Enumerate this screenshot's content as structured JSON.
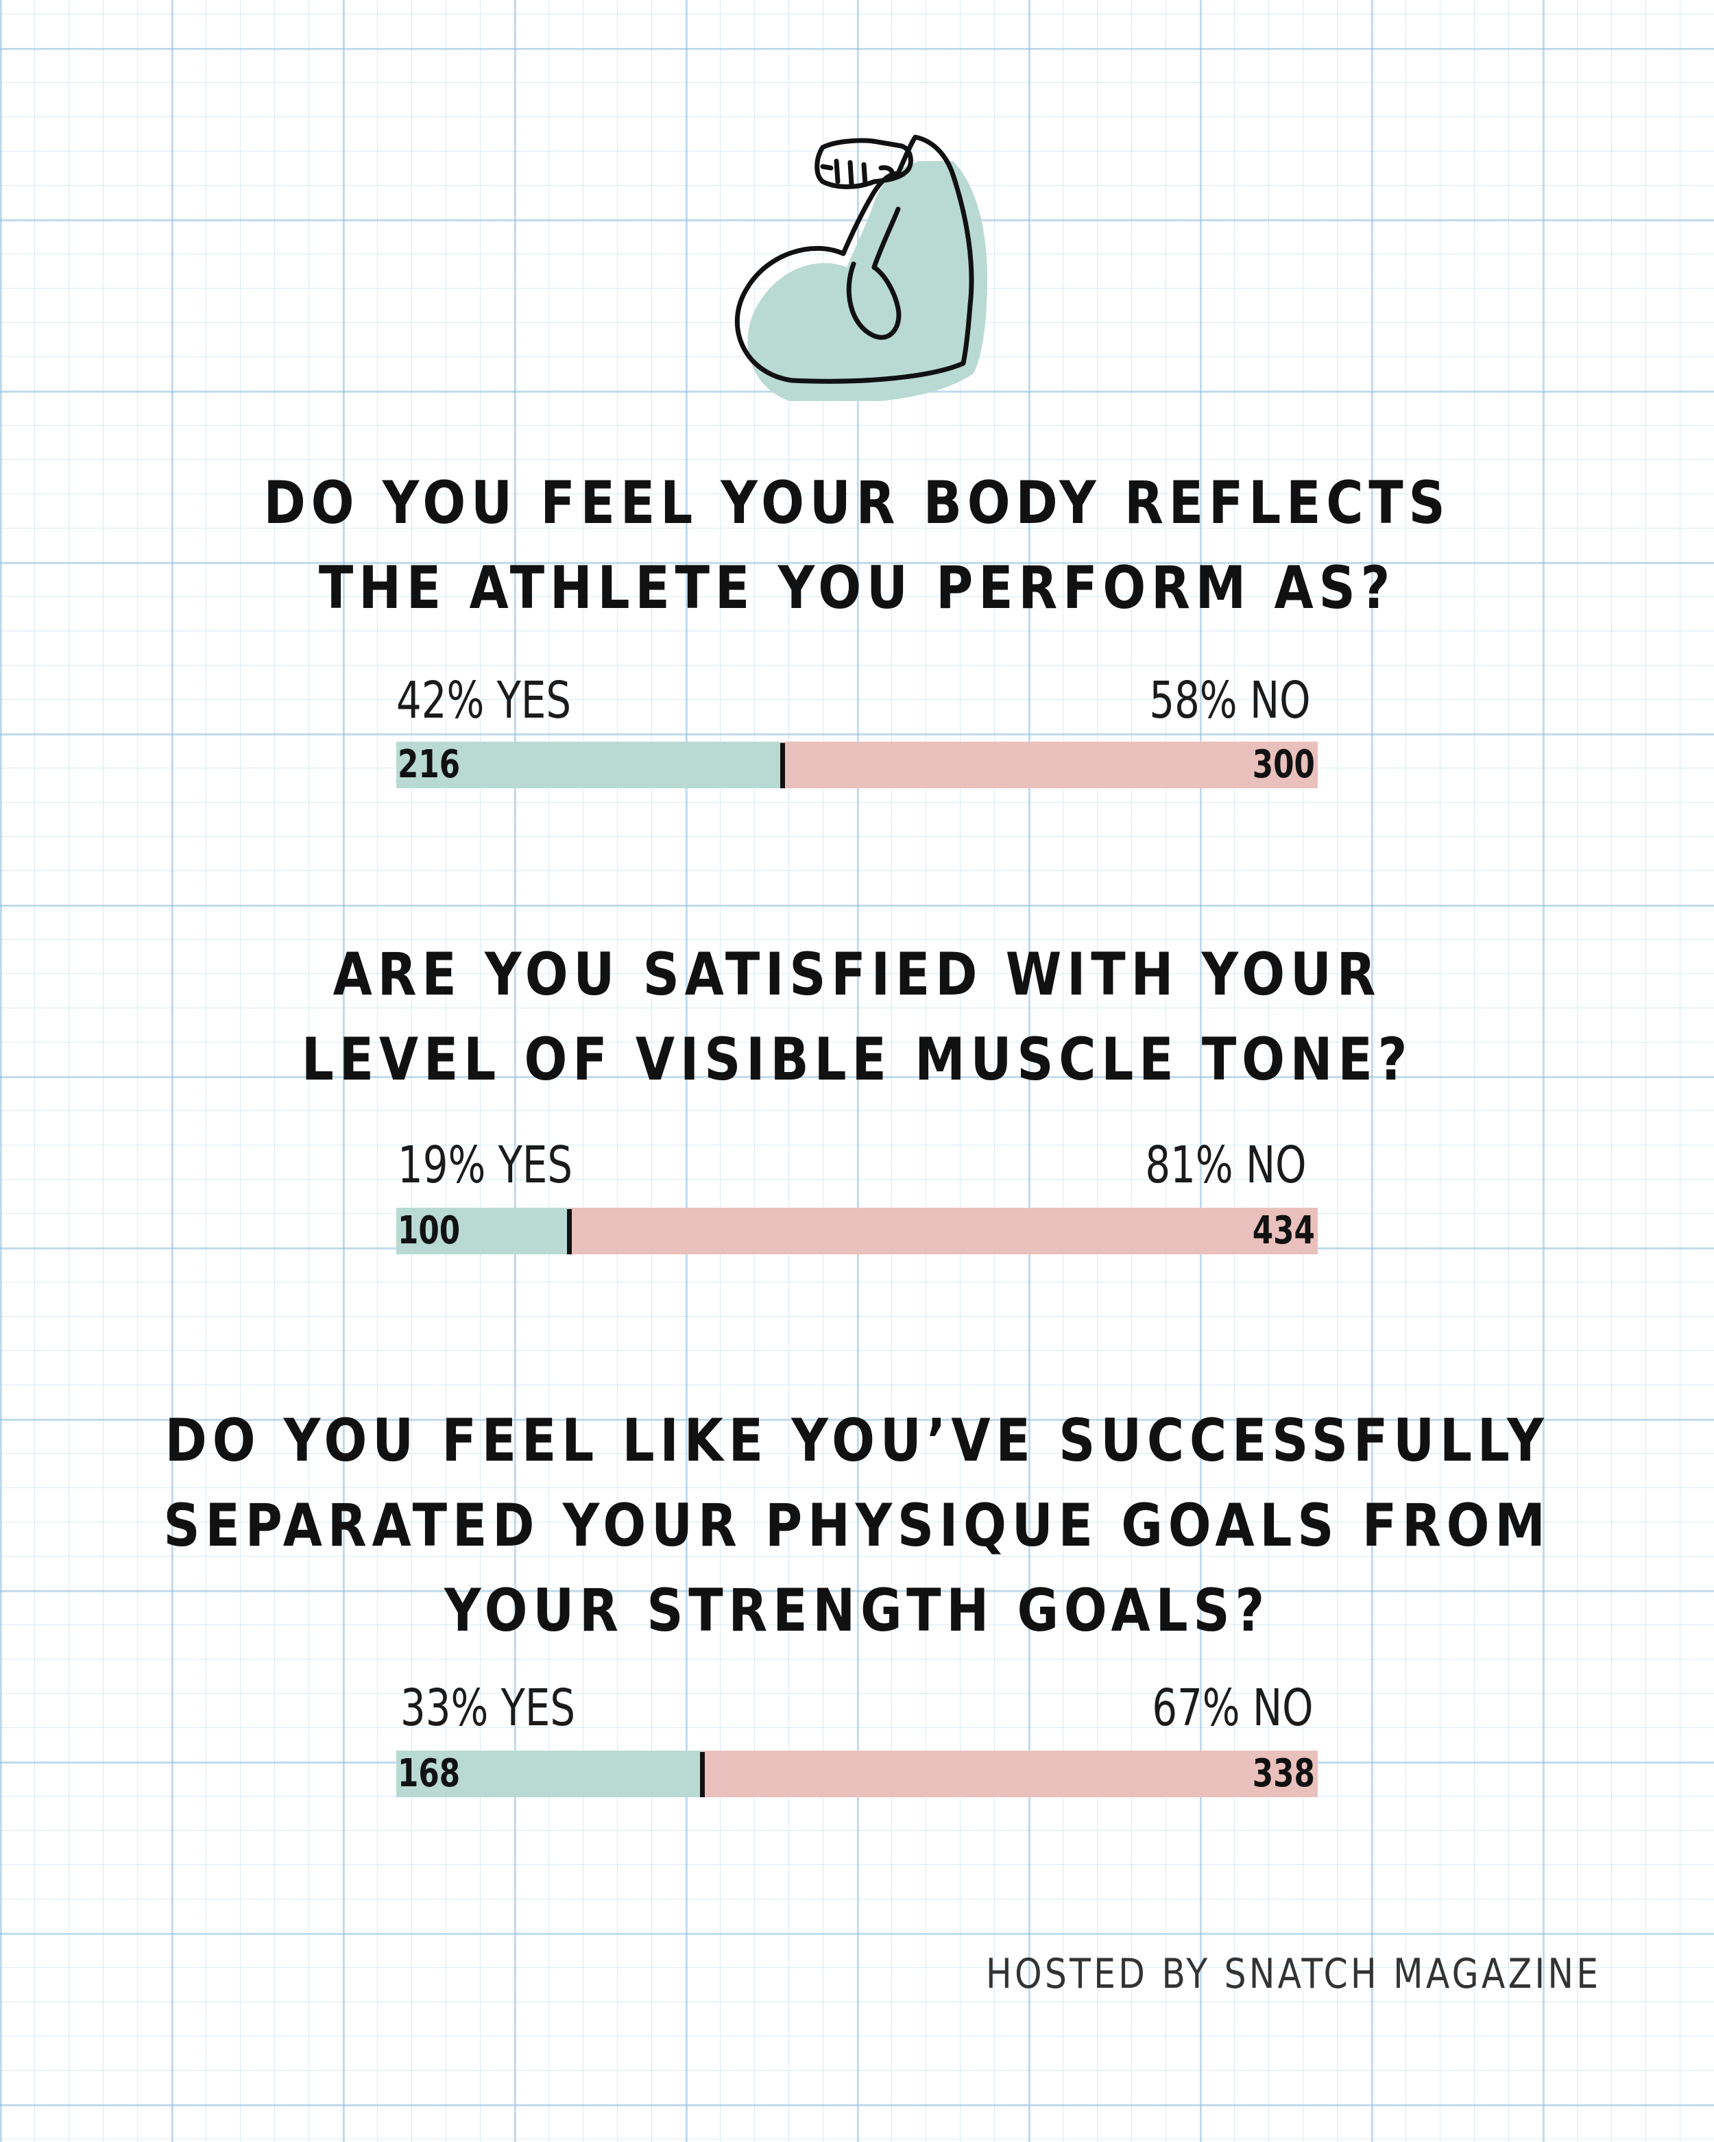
{
  "icon": {
    "name": "flexed-bicep-icon",
    "fill": "#b9dad2",
    "stroke": "#111111"
  },
  "colors": {
    "yes": "#b9dad2",
    "no": "#eac0bc",
    "divider": "#111111"
  },
  "chart_data": [
    {
      "type": "bar",
      "stacked": true,
      "title": [
        "DO YOU FEEL YOUR BODY REFLECTS",
        "THE ATHLETE YOU PERFORM AS?"
      ],
      "categories": [
        "YES",
        "NO"
      ],
      "percent_labels": [
        "42% YES",
        "58% NO"
      ],
      "values": [
        216,
        300
      ]
    },
    {
      "type": "bar",
      "stacked": true,
      "title": [
        "ARE YOU SATISFIED WITH YOUR",
        "LEVEL OF VISIBLE MUSCLE TONE?"
      ],
      "categories": [
        "YES",
        "NO"
      ],
      "percent_labels": [
        "19% YES",
        "81% NO"
      ],
      "values": [
        100,
        434
      ]
    },
    {
      "type": "bar",
      "stacked": true,
      "title": [
        "DO YOU FEEL LIKE YOU’VE SUCCESSFULLY",
        "SEPARATED YOUR PHYSIQUE GOALS FROM",
        "YOUR STRENGTH GOALS?"
      ],
      "categories": [
        "YES",
        "NO"
      ],
      "percent_labels": [
        "33% YES",
        "67% NO"
      ],
      "values": [
        168,
        338
      ]
    }
  ],
  "footer": {
    "text": "HOSTED BY SNATCH MAGAZINE"
  }
}
